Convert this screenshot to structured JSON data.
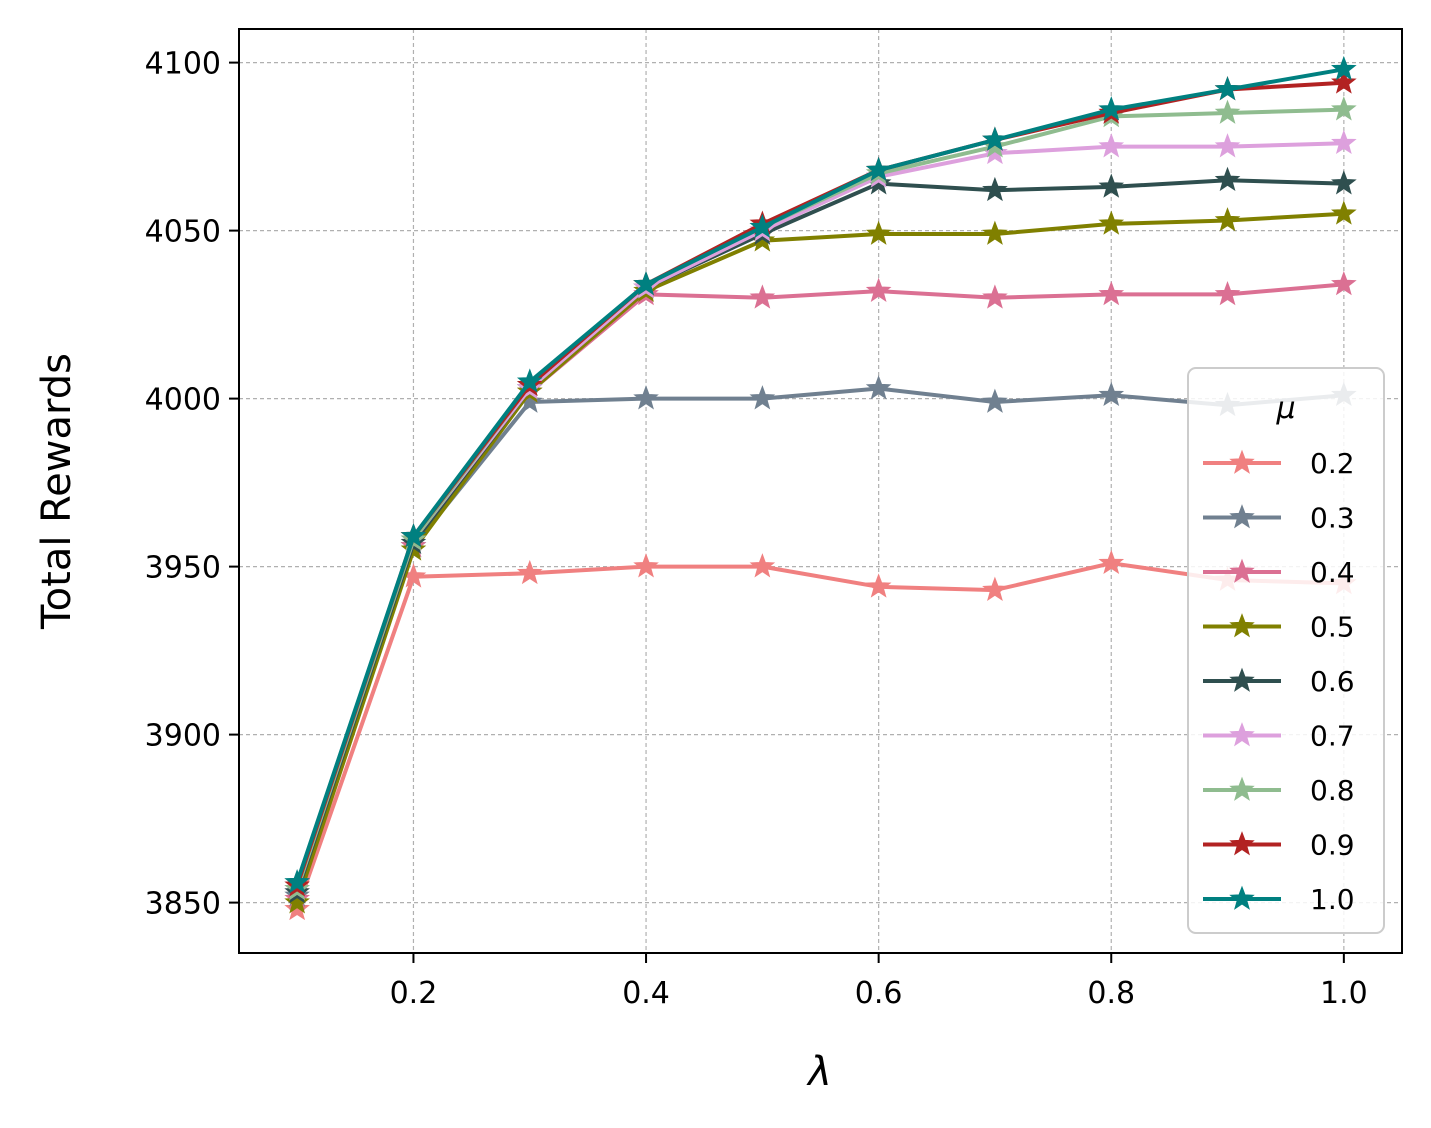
{
  "chart_data": {
    "type": "line",
    "xlabel": "λ",
    "ylabel": "Total Rewards",
    "xlim": [
      0.05,
      1.05
    ],
    "ylim": [
      3835,
      4110
    ],
    "xticks": [
      0.2,
      0.4,
      0.6,
      0.8,
      1.0
    ],
    "xtick_labels": [
      "0.2",
      "0.4",
      "0.6",
      "0.8",
      "1.0"
    ],
    "yticks": [
      3850,
      3900,
      3950,
      4000,
      4050,
      4100
    ],
    "ytick_labels": [
      "3850",
      "3900",
      "3950",
      "4000",
      "4050",
      "4100"
    ],
    "grid": true,
    "legend": {
      "title": "μ",
      "placement": "lower right"
    },
    "x": [
      0.1,
      0.2,
      0.3,
      0.4,
      0.5,
      0.6,
      0.7,
      0.8,
      0.9,
      1.0
    ],
    "series": [
      {
        "name": "0.2",
        "color": "#f08080",
        "values": [
          3848,
          3947,
          3948,
          3950,
          3950,
          3944,
          3943,
          3951,
          3946,
          3945
        ]
      },
      {
        "name": "0.3",
        "color": "#708090",
        "values": [
          3852,
          3956,
          3999,
          4000,
          4000,
          4003,
          3999,
          4001,
          3998,
          4001
        ]
      },
      {
        "name": "0.4",
        "color": "#db7093",
        "values": [
          3851,
          3956,
          4002,
          4031,
          4030,
          4032,
          4030,
          4031,
          4031,
          4034
        ]
      },
      {
        "name": "0.5",
        "color": "#808000",
        "values": [
          3850,
          3955,
          4002,
          4032,
          4047,
          4049,
          4049,
          4052,
          4053,
          4055
        ]
      },
      {
        "name": "0.6",
        "color": "#2f4f4f",
        "values": [
          3853,
          3957,
          4003,
          4033,
          4049,
          4064,
          4062,
          4063,
          4065,
          4064
        ]
      },
      {
        "name": "0.7",
        "color": "#dda0dd",
        "values": [
          3854,
          3958,
          4003,
          4033,
          4050,
          4066,
          4073,
          4075,
          4075,
          4076
        ]
      },
      {
        "name": "0.8",
        "color": "#8fbc8f",
        "values": [
          3854,
          3958,
          4004,
          4034,
          4051,
          4067,
          4075,
          4084,
          4085,
          4086
        ]
      },
      {
        "name": "0.9",
        "color": "#b22222",
        "values": [
          3855,
          3959,
          4004,
          4034,
          4052,
          4068,
          4077,
          4085,
          4092,
          4094
        ]
      },
      {
        "name": "1.0",
        "color": "#008080",
        "values": [
          3856,
          3959,
          4005,
          4034,
          4051,
          4068,
          4077,
          4086,
          4092,
          4098
        ]
      }
    ]
  }
}
